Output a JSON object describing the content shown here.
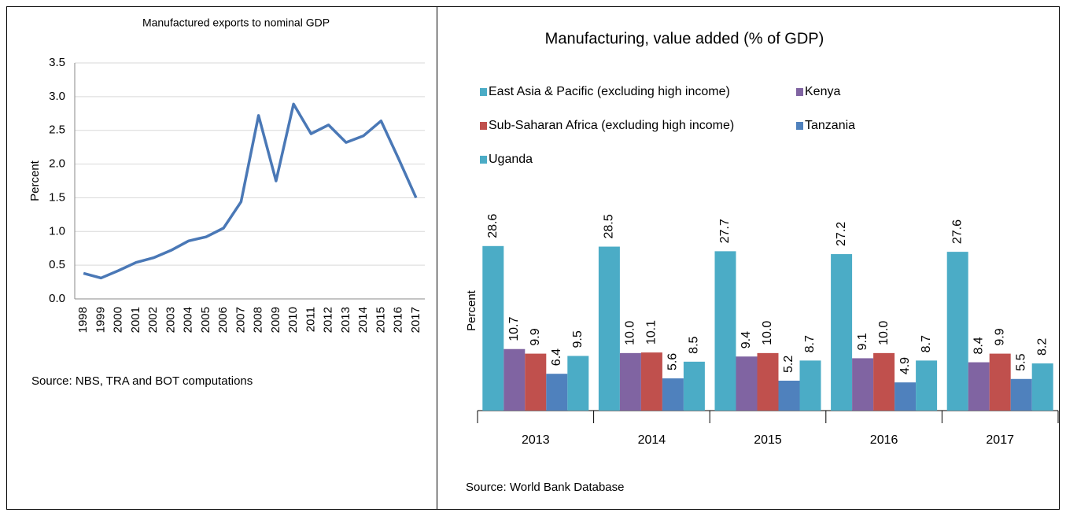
{
  "chart_data": [
    {
      "type": "line",
      "title": "Manufactured exports to nominal GDP",
      "y_label": "Percent",
      "categories": [
        "1998",
        "1999",
        "2000",
        "2001",
        "2002",
        "2003",
        "2004",
        "2005",
        "2006",
        "2007",
        "2008",
        "2009",
        "2010",
        "2011",
        "2012",
        "2013",
        "2014",
        "2015",
        "2016",
        "2017"
      ],
      "values": [
        0.38,
        0.31,
        0.42,
        0.54,
        0.61,
        0.72,
        0.86,
        0.92,
        1.05,
        1.44,
        2.72,
        1.75,
        2.89,
        2.45,
        2.58,
        2.32,
        2.42,
        2.64,
        2.08,
        1.5
      ],
      "color": "#4a78b6",
      "ylim": [
        0,
        3.5
      ],
      "yticks": [
        {
          "value": 0,
          "label": "0.0"
        },
        0.5,
        {
          "value": 1,
          "label": "1.0"
        },
        1.5,
        {
          "value": 2,
          "label": "2.0"
        },
        2.5,
        {
          "value": 3,
          "label": "3.0"
        },
        3.5
      ],
      "grid": true,
      "source": "Source: NBS, TRA and BOT computations"
    },
    {
      "type": "bar",
      "title": "Manufacturing, value added (% of GDP)",
      "y_label": "Percent",
      "categories": [
        "2013",
        "2014",
        "2015",
        "2016",
        "2017"
      ],
      "ylim": [
        0,
        35
      ],
      "series": [
        {
          "name": "East Asia & Pacific (excluding high income)",
          "color": "#4bacc6",
          "values": [
            28.6,
            28.5,
            27.7,
            27.2,
            27.6
          ],
          "value_labels": [
            "28.6",
            "28.5",
            "27.7",
            "27.2",
            "27.6"
          ]
        },
        {
          "name": "Kenya",
          "color": "#8064a2",
          "values": [
            10.7,
            10,
            9.4,
            9.1,
            8.4
          ],
          "value_labels": [
            "10.7",
            "10.0",
            "9.4",
            "9.1",
            "8.4"
          ]
        },
        {
          "name": "Sub-Saharan Africa (excluding high income)",
          "color": "#c0504d",
          "values": [
            9.9,
            10.1,
            10,
            10,
            9.9
          ],
          "value_labels": [
            "9.9",
            "10.1",
            "10.0",
            "10.0",
            "9.9"
          ]
        },
        {
          "name": "Tanzania",
          "color": "#4f81bd",
          "values": [
            6.4,
            5.6,
            5.2,
            4.9,
            5.5
          ],
          "value_labels": [
            "6.4",
            "5.6",
            "5.2",
            "4.9",
            "5.5"
          ]
        },
        {
          "name": "Uganda",
          "color": "#4bacc6",
          "values": [
            9.5,
            8.5,
            8.7,
            8.7,
            8.2
          ],
          "value_labels": [
            "9.5",
            "8.5",
            "8.7",
            "8.7",
            "8.2"
          ]
        }
      ],
      "source": "Source: World Bank Database"
    }
  ]
}
